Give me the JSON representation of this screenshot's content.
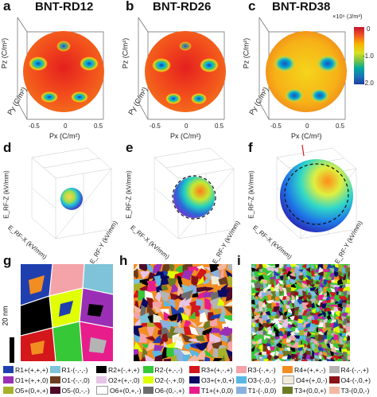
{
  "panels": {
    "a": {
      "letter": "a",
      "title": "BNT-RD12"
    },
    "b": {
      "letter": "b",
      "title": "BNT-RD26"
    },
    "c": {
      "letter": "c",
      "title": "BNT-RD38"
    },
    "d": {
      "letter": "d"
    },
    "e": {
      "letter": "e"
    },
    "f": {
      "letter": "f"
    },
    "g": {
      "letter": "g",
      "scale_label": "20 nm"
    },
    "h": {
      "letter": "h"
    },
    "i": {
      "letter": "i"
    }
  },
  "sphere_axes": {
    "pz_label": "Pz (C/m²)",
    "py_label": "Py (C/m²)",
    "px_label": "Px (C/m²)",
    "ticks_neg": "-0.5",
    "ticks_zero": "0",
    "ticks_pos": "0.5"
  },
  "colorbar": {
    "unit": "×10⁶ (J/m³)",
    "ticks": [
      "0",
      "-1.0",
      "-2.0"
    ],
    "colors": [
      "#c8102e",
      "#f15a24",
      "#f7b500",
      "#d9e021",
      "#6cc24a",
      "#00a99d",
      "#1c75bc",
      "#1b3fa0"
    ]
  },
  "field_axes": {
    "z_label": "E_RF-Z (kV/mm)",
    "x_label": "E_RF-X (kV/mm)",
    "y_label": "E_RF-Y (kV/mm)",
    "ticks": [
      "60",
      "30",
      "0",
      "-30",
      "-60"
    ]
  },
  "legend": [
    {
      "label": "R1+(+,+,+)",
      "color": "#1f3fae"
    },
    {
      "label": "R1-(-,-,-)",
      "color": "#7ec3d8"
    },
    {
      "label": "R2+(-,+,+)",
      "color": "#000000"
    },
    {
      "label": "R2-(+,-,-)",
      "color": "#37c837"
    },
    {
      "label": "R3+(+,-,+)",
      "color": "#d3171b"
    },
    {
      "label": "R3-(-,+,-)",
      "color": "#f4a3a8"
    },
    {
      "label": "R4+(+,+,-)",
      "color": "#f28d22"
    },
    {
      "label": "R4-(-,-,+)",
      "color": "#b4b4b4"
    },
    {
      "label": "O1+(+,+,0)",
      "color": "#9a2fb5"
    },
    {
      "label": "O1-(-,-,0)",
      "color": "#6b3d1e"
    },
    {
      "label": "O2+(+,-,0)",
      "color": "#e6c5e6"
    },
    {
      "label": "O2-(-,+,0)",
      "color": "#e0ff00"
    },
    {
      "label": "O3+(+,0,+)",
      "color": "#0a0a64"
    },
    {
      "label": "O3-(-,0,-)",
      "color": "#58b7e4"
    },
    {
      "label": "O4+(+,0,-)",
      "color": "#f0ecd8"
    },
    {
      "label": "O4-(-,0,+)",
      "color": "#8a1219"
    },
    {
      "label": "O5+(0,+,+)",
      "color": "#a7b12b"
    },
    {
      "label": "O5-(0,-,-)",
      "color": "#4f0a2a"
    },
    {
      "label": "O6+(0,+,-)",
      "color": "#ffffff"
    },
    {
      "label": "O6-(0,-,+)",
      "color": "#6d6d6d"
    },
    {
      "label": "T1+(+,0,0)",
      "color": "#e81d8c"
    },
    {
      "label": "T1-(-,0,0)",
      "color": "#8ab0e0"
    },
    {
      "label": "T3+(0,0,+)",
      "color": "#6e7a23"
    },
    {
      "label": "T3-(0,0,-)",
      "color": "#f3b8a3"
    }
  ]
}
